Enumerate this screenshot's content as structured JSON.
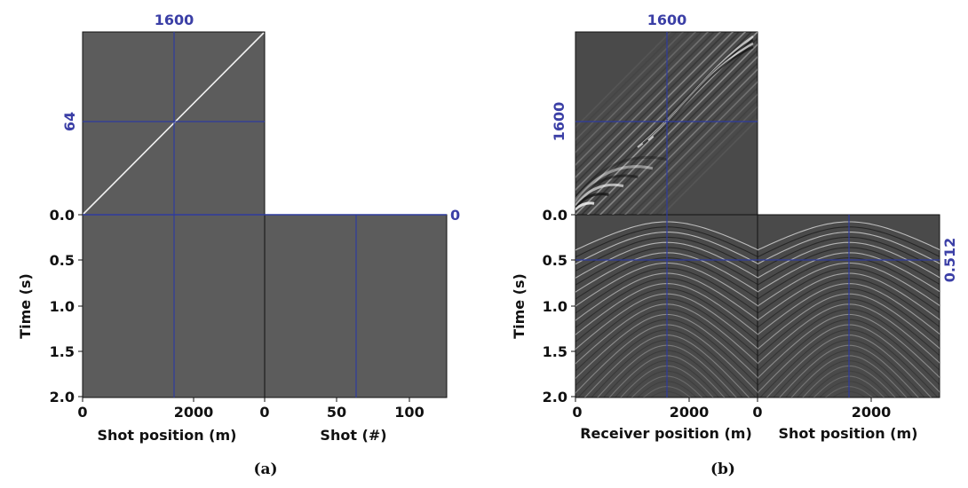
{
  "panel_a": {
    "caption": "(a)",
    "top_crosshair_label": "1600",
    "left_crosshair_label": "64",
    "right_crosshair_label": "0",
    "xlabel_left": "Shot position (m)",
    "xlabel_right": "Shot (#)",
    "ylabel": "Time (s)",
    "yticks": [
      "0.0",
      "0.5",
      "1.0",
      "1.5",
      "2.0"
    ],
    "xticks_left": [
      "0",
      "2000"
    ],
    "xticks_right": [
      "0",
      "50",
      "100"
    ]
  },
  "panel_b": {
    "caption": "(b)",
    "top_crosshair_label": "1600",
    "left_crosshair_label": "1600",
    "right_crosshair_label": "0.512",
    "xlabel_left": "Receiver position (m)",
    "xlabel_right": "Shot position (m)",
    "ylabel": "Time (s)",
    "yticks": [
      "0.0",
      "0.5",
      "1.0",
      "1.5",
      "2.0"
    ],
    "xticks_left": [
      "0",
      "2000"
    ],
    "xticks_right": [
      "0",
      "2000"
    ]
  },
  "colors": {
    "panel_gray": "#5c5c5c",
    "seismic_bg": "#4a4a4a",
    "crosshair": "#2e3b9e",
    "label_blue": "#3b3fa6"
  }
}
